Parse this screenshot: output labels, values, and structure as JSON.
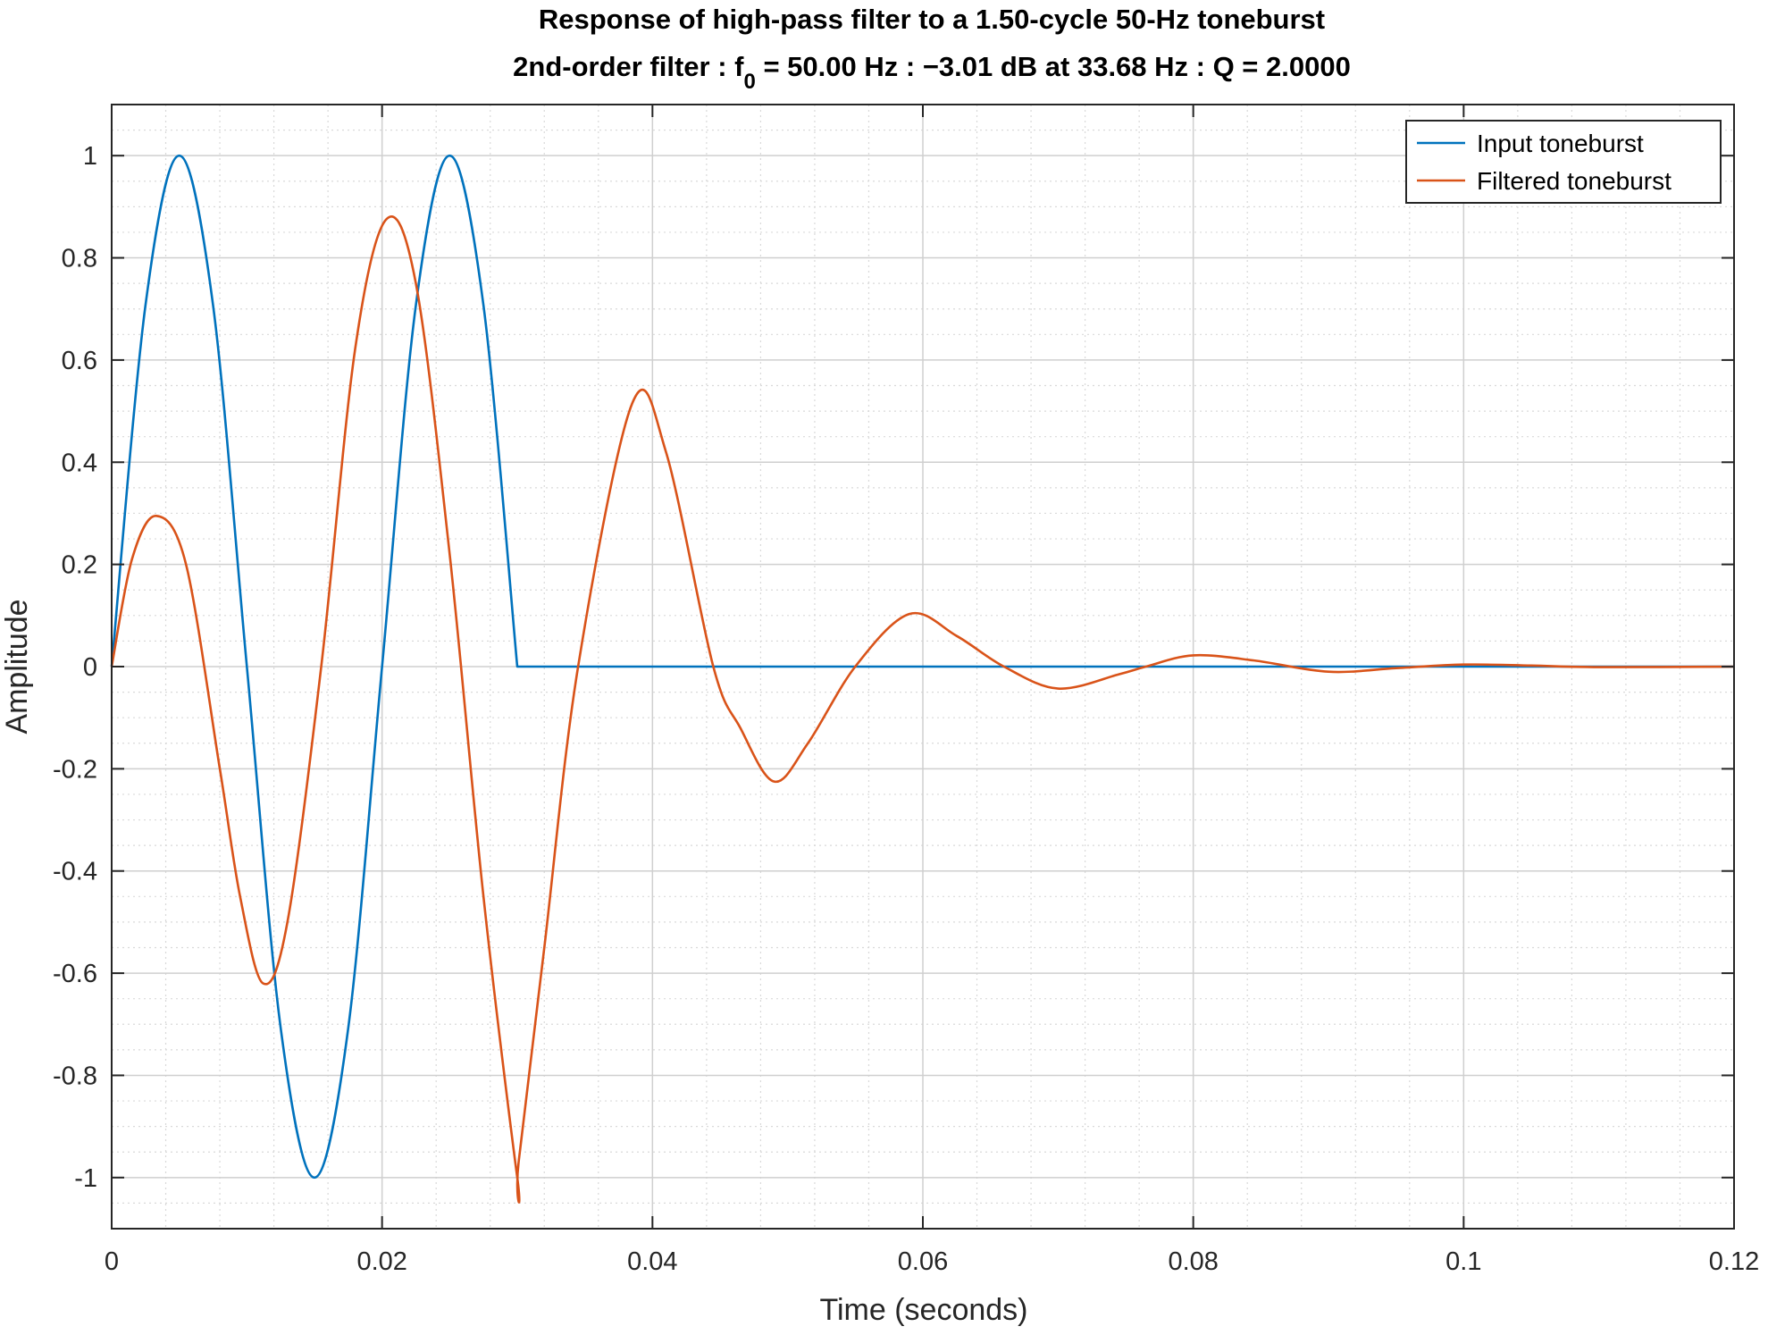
{
  "chart_data": {
    "type": "line",
    "title": "Response of high-pass filter to a 1.50-cycle 50-Hz toneburst",
    "subtitle": {
      "before": "2nd-order filter : f",
      "sub": "0",
      "after": " = 50.00 Hz : −3.01 dB at 33.68 Hz : Q = 2.0000"
    },
    "xlabel": "Time (seconds)",
    "ylabel": "Amplitude",
    "xlim": [
      0,
      0.12
    ],
    "ylim": [
      -1.1,
      1.1
    ],
    "xticks": [
      0,
      0.02,
      0.04,
      0.06,
      0.08,
      0.1,
      0.12
    ],
    "xtick_labels": [
      "0",
      "0.02",
      "0.04",
      "0.06",
      "0.08",
      "0.1",
      "0.12"
    ],
    "yticks": [
      -1,
      -0.8,
      -0.6,
      -0.4,
      -0.2,
      0,
      0.2,
      0.4,
      0.6,
      0.8,
      1
    ],
    "ytick_labels": [
      "-1",
      "-0.8",
      "-0.6",
      "-0.4",
      "-0.2",
      "0",
      "0.2",
      "0.4",
      "0.6",
      "0.8",
      "1"
    ],
    "grid": true,
    "minor_grid": true,
    "legend_position": "top-right",
    "series": [
      {
        "name": "Input toneburst",
        "color": "#0072BD",
        "x": [
          0,
          0.0025,
          0.005,
          0.0075,
          0.01,
          0.0125,
          0.015,
          0.0175,
          0.02,
          0.0225,
          0.025,
          0.0275,
          0.03,
          0.0301,
          0.12
        ],
        "y": [
          0,
          0.707,
          1.0,
          0.707,
          0,
          -0.707,
          -1.0,
          -0.707,
          0,
          0.707,
          1.0,
          0.707,
          0,
          0,
          0
        ]
      },
      {
        "name": "Filtered toneburst",
        "color": "#D95319",
        "x": [
          0,
          0.0015,
          0.0033,
          0.0055,
          0.008,
          0.0095,
          0.0112,
          0.013,
          0.0155,
          0.018,
          0.0203,
          0.0225,
          0.025,
          0.0275,
          0.03,
          0.0301,
          0.032,
          0.0345,
          0.0385,
          0.041,
          0.0445,
          0.0465,
          0.049,
          0.0515,
          0.055,
          0.059,
          0.0625,
          0.066,
          0.07,
          0.0745,
          0.0765,
          0.08,
          0.0845,
          0.09,
          0.095,
          0.1,
          0.105,
          0.11,
          0.12
        ],
        "y": [
          0,
          0.21,
          0.295,
          0.2,
          -0.2,
          -0.45,
          -0.62,
          -0.5,
          0.0,
          0.62,
          0.875,
          0.75,
          0.22,
          -0.45,
          -1.0,
          -0.97,
          -0.55,
          0.0,
          0.515,
          0.42,
          0.0,
          -0.12,
          -0.225,
          -0.15,
          0.0,
          0.103,
          0.06,
          0.0,
          -0.043,
          -0.015,
          0.0,
          0.022,
          0.012,
          -0.01,
          -0.003,
          0.004,
          0.002,
          -0.001,
          0.0
        ]
      }
    ]
  }
}
